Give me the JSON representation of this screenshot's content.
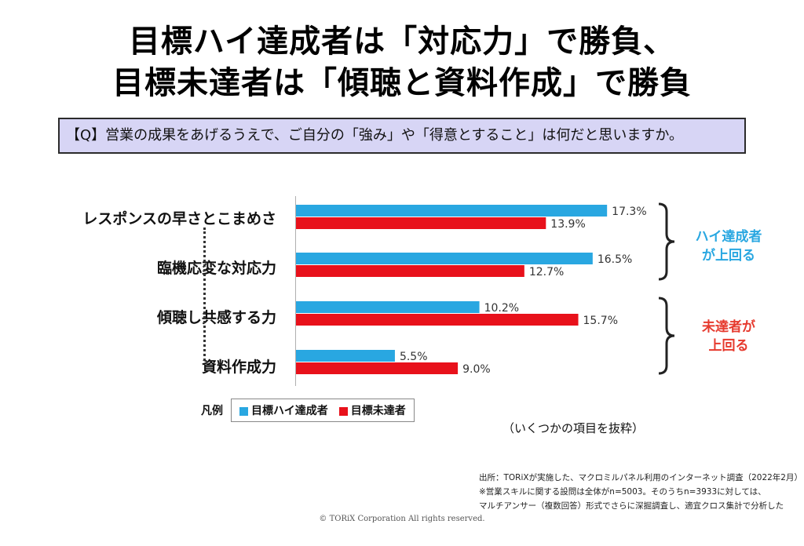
{
  "title_line1": "目標ハイ達成者は「対応力」で勝負、",
  "title_line2": "目標未達者は「傾聴と資料作成」で勝負",
  "question": "【Q】営業の成果をあげるうえで、ご自分の「強み」や「得意とすること」は何だと思いますか。",
  "group_labels": {
    "high": [
      "ハイ達成者",
      "が上回る"
    ],
    "low": [
      "未達者が",
      "上回る"
    ]
  },
  "legend": {
    "title": "凡例",
    "items": [
      {
        "label": "目標ハイ達成者",
        "color": "#29a7e1"
      },
      {
        "label": "目標未達者",
        "color": "#e8111b"
      }
    ]
  },
  "note": "（いくつかの項目を抜粋）",
  "source_lines": [
    "出所：TORiXが実施した、マクロミルパネル利用のインターネット調査（2022年2月）",
    "※営業スキルに関する設問は全体がn=5003。そのうちn=3933に対しては、",
    "マルチアンサー（複数回答）形式でさらに深掘調査し、適宜クロス集計で分析した"
  ],
  "copyright": "© TORiX Corporation All rights reserved.",
  "chart_data": {
    "type": "bar",
    "orientation": "horizontal",
    "categories": [
      "レスポンスの早さとこまめさ",
      "臨機応変な対応力",
      "傾聴し共感する力",
      "資料作成力"
    ],
    "series": [
      {
        "name": "目標ハイ達成者",
        "color": "#29a7e1",
        "values": [
          17.3,
          16.5,
          10.2,
          5.5
        ],
        "labels": [
          "17.3%",
          "16.5%",
          "10.2%",
          "5.5%"
        ]
      },
      {
        "name": "目標未達者",
        "color": "#e8111b",
        "values": [
          13.9,
          12.7,
          15.7,
          9.0
        ],
        "labels": [
          "13.9%",
          "12.7%",
          "15.7%",
          "9.0%"
        ]
      }
    ],
    "unit": "%",
    "grid": false,
    "legend_position": "bottom-left"
  }
}
